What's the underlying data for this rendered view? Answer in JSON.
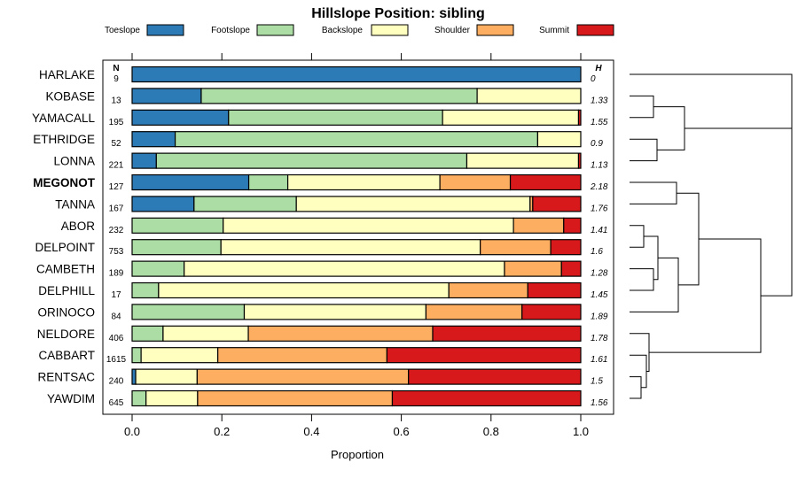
{
  "chart_data": {
    "type": "bar",
    "stacked": "horizontal-proportion",
    "title": "Hillslope Position: sibling",
    "xlabel": "Proportion",
    "xlim": [
      0,
      1
    ],
    "x_ticks": [
      "0.0",
      "0.2",
      "0.4",
      "0.6",
      "0.8",
      "1.0"
    ],
    "n_header": "N",
    "h_header": "H",
    "legend_position": "top",
    "series": [
      {
        "name": "Toeslope",
        "color": "#2c7bb6"
      },
      {
        "name": "Footslope",
        "color": "#abdda4"
      },
      {
        "name": "Backslope",
        "color": "#ffffbf"
      },
      {
        "name": "Shoulder",
        "color": "#fdae61"
      },
      {
        "name": "Summit",
        "color": "#d7191c"
      }
    ],
    "rows": [
      {
        "name": "HARLAKE",
        "n": "9",
        "h": "0",
        "bold": false,
        "values": [
          1.0,
          0,
          0,
          0,
          0
        ]
      },
      {
        "name": "KOBASE",
        "n": "13",
        "h": "1.33",
        "bold": false,
        "values": [
          0.154,
          0.615,
          0.231,
          0,
          0
        ]
      },
      {
        "name": "YAMACALL",
        "n": "195",
        "h": "1.55",
        "bold": false,
        "values": [
          0.215,
          0.477,
          0.303,
          0,
          0.005
        ]
      },
      {
        "name": "ETHRIDGE",
        "n": "52",
        "h": "0.9",
        "bold": false,
        "values": [
          0.096,
          0.808,
          0.096,
          0,
          0
        ]
      },
      {
        "name": "LONNA",
        "n": "221",
        "h": "1.13",
        "bold": false,
        "values": [
          0.054,
          0.692,
          0.249,
          0,
          0.005
        ]
      },
      {
        "name": "MEGONOT",
        "n": "127",
        "h": "2.18",
        "bold": true,
        "values": [
          0.26,
          0.087,
          0.339,
          0.157,
          0.157
        ]
      },
      {
        "name": "TANNA",
        "n": "167",
        "h": "1.76",
        "bold": false,
        "values": [
          0.138,
          0.228,
          0.521,
          0.006,
          0.107
        ]
      },
      {
        "name": "ABOR",
        "n": "232",
        "h": "1.41",
        "bold": false,
        "values": [
          0,
          0.203,
          0.647,
          0.112,
          0.038
        ]
      },
      {
        "name": "DELPOINT",
        "n": "753",
        "h": "1.6",
        "bold": false,
        "values": [
          0,
          0.198,
          0.578,
          0.157,
          0.067
        ]
      },
      {
        "name": "CAMBETH",
        "n": "189",
        "h": "1.28",
        "bold": false,
        "values": [
          0,
          0.116,
          0.714,
          0.127,
          0.043
        ]
      },
      {
        "name": "DELPHILL",
        "n": "17",
        "h": "1.45",
        "bold": false,
        "values": [
          0,
          0.059,
          0.647,
          0.176,
          0.118
        ]
      },
      {
        "name": "ORINOCO",
        "n": "84",
        "h": "1.89",
        "bold": false,
        "values": [
          0,
          0.25,
          0.405,
          0.214,
          0.131
        ]
      },
      {
        "name": "NELDORE",
        "n": "406",
        "h": "1.78",
        "bold": false,
        "values": [
          0,
          0.069,
          0.19,
          0.411,
          0.33
        ]
      },
      {
        "name": "CABBART",
        "n": "1615",
        "h": "1.61",
        "bold": false,
        "values": [
          0,
          0.02,
          0.171,
          0.377,
          0.432
        ]
      },
      {
        "name": "RENTSAC",
        "n": "240",
        "h": "1.5",
        "bold": false,
        "values": [
          0.008,
          0,
          0.137,
          0.471,
          0.384
        ]
      },
      {
        "name": "YAWDIM",
        "n": "645",
        "h": "1.56",
        "bold": false,
        "values": [
          0,
          0.031,
          0.115,
          0.434,
          0.42
        ]
      }
    ],
    "dendrogram": "hierarchical clustering of the soil series (row order)"
  }
}
